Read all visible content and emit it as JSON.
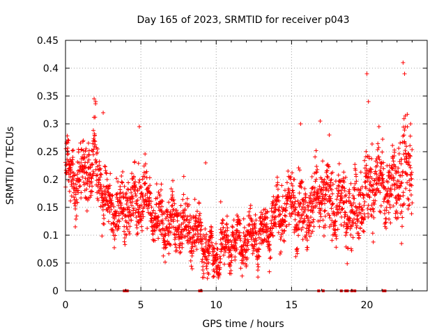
{
  "chart_data": {
    "type": "scatter",
    "title": "Day 165 of 2023, SRMTID for receiver p043",
    "xlabel": "GPS time / hours",
    "ylabel": "SRMTID / TECUs",
    "xlim": [
      0,
      24
    ],
    "ylim": [
      0,
      0.45
    ],
    "grid": true,
    "marker": "+",
    "marker_color": "#ff0000",
    "x_ticks": [
      0,
      5,
      10,
      15,
      20
    ],
    "x_tick_labels": [
      "0",
      "5",
      "10",
      "15",
      "20"
    ],
    "y_ticks": [
      0,
      0.05,
      0.1,
      0.15,
      0.2,
      0.25,
      0.3,
      0.35,
      0.4,
      0.45
    ],
    "y_tick_labels": [
      "0",
      "0.05",
      "0.1",
      "0.15",
      "0.2",
      "0.25",
      "0.3",
      "0.35",
      "0.4",
      "0.45"
    ],
    "envelope": {
      "hours": [
        0.0,
        0.5,
        1.0,
        1.5,
        2.0,
        2.5,
        3.0,
        3.5,
        4.0,
        4.5,
        5.0,
        5.5,
        6.0,
        6.5,
        7.0,
        7.5,
        8.0,
        8.5,
        9.0,
        9.5,
        10.0,
        10.5,
        11.0,
        11.5,
        12.0,
        12.5,
        13.0,
        13.5,
        14.0,
        14.5,
        15.0,
        15.5,
        16.0,
        16.5,
        17.0,
        17.5,
        18.0,
        18.5,
        19.0,
        19.5,
        20.0,
        20.5,
        21.0,
        21.5,
        22.0,
        22.5,
        23.0
      ],
      "center": [
        0.21,
        0.2,
        0.2,
        0.22,
        0.24,
        0.17,
        0.15,
        0.14,
        0.15,
        0.16,
        0.17,
        0.16,
        0.13,
        0.12,
        0.12,
        0.12,
        0.11,
        0.11,
        0.1,
        0.07,
        0.06,
        0.08,
        0.09,
        0.09,
        0.09,
        0.1,
        0.1,
        0.12,
        0.14,
        0.14,
        0.16,
        0.15,
        0.14,
        0.16,
        0.17,
        0.16,
        0.15,
        0.15,
        0.14,
        0.15,
        0.18,
        0.2,
        0.19,
        0.18,
        0.2,
        0.22,
        0.2
      ],
      "spread": [
        0.05,
        0.05,
        0.05,
        0.06,
        0.07,
        0.05,
        0.05,
        0.05,
        0.05,
        0.06,
        0.06,
        0.05,
        0.05,
        0.05,
        0.05,
        0.05,
        0.05,
        0.05,
        0.05,
        0.03,
        0.03,
        0.04,
        0.04,
        0.04,
        0.04,
        0.04,
        0.04,
        0.05,
        0.05,
        0.05,
        0.06,
        0.06,
        0.06,
        0.06,
        0.07,
        0.06,
        0.06,
        0.06,
        0.06,
        0.07,
        0.08,
        0.07,
        0.06,
        0.06,
        0.08,
        0.09,
        0.07
      ]
    },
    "point_count": 2400,
    "notable_points": [
      {
        "x": 22.4,
        "y": 0.41
      },
      {
        "x": 22.5,
        "y": 0.39
      },
      {
        "x": 20.0,
        "y": 0.39
      },
      {
        "x": 20.1,
        "y": 0.34
      },
      {
        "x": 1.9,
        "y": 0.345
      },
      {
        "x": 2.0,
        "y": 0.34
      },
      {
        "x": 9.5,
        "y": 0.03
      },
      {
        "x": 9.8,
        "y": 0.025
      },
      {
        "x": 4.9,
        "y": 0.295
      },
      {
        "x": 16.9,
        "y": 0.305
      },
      {
        "x": 15.6,
        "y": 0.3
      },
      {
        "x": 20.8,
        "y": 0.295
      },
      {
        "x": 22.9,
        "y": 0.3
      },
      {
        "x": 0.2,
        "y": 0.27
      },
      {
        "x": 2.5,
        "y": 0.32
      },
      {
        "x": 9.3,
        "y": 0.23
      },
      {
        "x": 10.3,
        "y": 0.16
      },
      {
        "x": 17.5,
        "y": 0.28
      }
    ],
    "zero_values_at_hours": [
      3.9,
      4.0,
      4.1,
      8.9,
      9.0,
      16.8,
      17.1,
      18.3,
      18.6,
      18.7,
      19.0,
      19.2,
      21.1,
      21.2
    ]
  }
}
